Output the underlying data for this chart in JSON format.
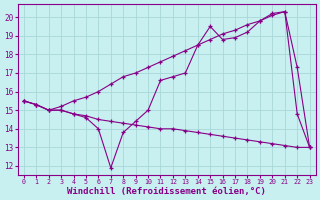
{
  "background_color": "#c8f0f0",
  "grid_color": "#a8d8d8",
  "line_color": "#880088",
  "xlabel": "Windchill (Refroidissement éolien,°C)",
  "xlabel_fontsize": 6.5,
  "xlim": [
    -0.5,
    23.5
  ],
  "ylim": [
    11.5,
    20.7
  ],
  "yticks": [
    12,
    13,
    14,
    15,
    16,
    17,
    18,
    19,
    20
  ],
  "xticks": [
    0,
    1,
    2,
    3,
    4,
    5,
    6,
    7,
    8,
    9,
    10,
    11,
    12,
    13,
    14,
    15,
    16,
    17,
    18,
    19,
    20,
    21,
    22,
    23
  ],
  "series1_x": [
    0,
    1,
    2,
    3,
    4,
    5,
    6,
    7,
    8,
    9,
    10,
    11,
    12,
    13,
    14,
    15,
    16,
    17,
    18,
    19,
    20,
    21,
    22,
    23
  ],
  "series1_y": [
    15.5,
    15.3,
    15.0,
    15.0,
    14.8,
    14.7,
    14.5,
    14.4,
    14.3,
    14.2,
    14.1,
    14.0,
    14.0,
    13.9,
    13.8,
    13.7,
    13.6,
    13.5,
    13.4,
    13.3,
    13.2,
    13.1,
    13.0,
    13.0
  ],
  "series2_x": [
    0,
    1,
    2,
    3,
    4,
    5,
    6,
    7,
    8,
    9,
    10,
    11,
    12,
    13,
    14,
    15,
    16,
    17,
    18,
    19,
    20,
    21,
    22,
    23
  ],
  "series2_y": [
    15.5,
    15.3,
    15.0,
    15.0,
    14.8,
    14.6,
    14.0,
    11.9,
    13.8,
    14.4,
    15.0,
    16.6,
    16.8,
    17.0,
    18.5,
    19.5,
    18.8,
    18.9,
    19.2,
    19.8,
    20.2,
    20.3,
    14.8,
    13.0
  ],
  "series3_x": [
    0,
    1,
    2,
    3,
    4,
    5,
    6,
    7,
    8,
    9,
    10,
    11,
    12,
    13,
    14,
    15,
    16,
    17,
    18,
    19,
    20,
    21,
    22,
    23
  ],
  "series3_y": [
    15.5,
    15.3,
    15.0,
    15.2,
    15.5,
    15.7,
    16.0,
    16.4,
    16.8,
    17.0,
    17.3,
    17.6,
    17.9,
    18.2,
    18.5,
    18.8,
    19.1,
    19.3,
    19.6,
    19.8,
    20.1,
    20.3,
    17.3,
    13.0
  ]
}
